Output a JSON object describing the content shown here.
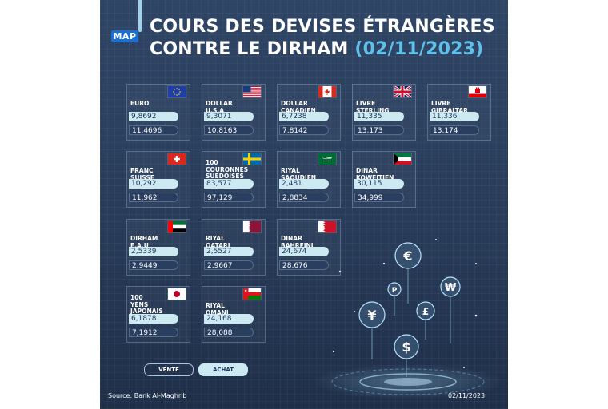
{
  "logo": "MAP",
  "title": {
    "line1": "COURS DES DEVISES ÉTRANGÈRES",
    "line2": "CONTRE LE DIRHAM",
    "date": "(02/11/2023)"
  },
  "currencies": [
    {
      "name": "EURO",
      "flag": "eu",
      "vente": "9,8692",
      "achat": "11,4696"
    },
    {
      "name": "DOLLAR\nU.S.A",
      "flag": "us",
      "vente": "9,3071",
      "achat": "10,8163"
    },
    {
      "name": "DOLLAR\nCANADIEN",
      "flag": "ca",
      "vente": "6,7238",
      "achat": "7,8142"
    },
    {
      "name": "LIVRE\nSTERLING",
      "flag": "gb",
      "vente": "11,335",
      "achat": "13,173"
    },
    {
      "name": "LIVRE\nGIBRALTAR",
      "flag": "gi",
      "vente": "11,336",
      "achat": "13,174"
    },
    {
      "name": "FRANC\nSUISSE",
      "flag": "ch",
      "vente": "10,292",
      "achat": "11,962"
    },
    {
      "name": "100\nCOURONNES\nSUEDOISES",
      "flag": "se",
      "vente": "83,577",
      "achat": "97,129"
    },
    {
      "name": "RIYAL\nSAOUDIEN",
      "flag": "sa",
      "vente": "2,481",
      "achat": "2,8834"
    },
    {
      "name": "DINAR\nKOWEITIEN",
      "flag": "kw",
      "vente": "30,115",
      "achat": "34,999"
    },
    {
      "name": "DIRHAM\nE.A.U",
      "flag": "ae",
      "vente": "2,5339",
      "achat": "2,9449"
    },
    {
      "name": "RIYAL\nQATARI",
      "flag": "qa",
      "vente": "2,5527",
      "achat": "2,9667"
    },
    {
      "name": "DINAR\nBAHREINI",
      "flag": "bh",
      "vente": "24,674",
      "achat": "28,676"
    },
    {
      "name": "100\nYENS\nJAPONAIS",
      "flag": "jp",
      "vente": "6,1878",
      "achat": "7,1912"
    },
    {
      "name": "RIYAL\nOMANI",
      "flag": "om",
      "vente": "24,168",
      "achat": "28,088"
    }
  ],
  "legend": {
    "vente": "VENTE",
    "achat": "ACHAT"
  },
  "source": "Source: Bank Al-Maghrib",
  "footer_date": "02/11/2023",
  "colors": {
    "accent": "#5fc0ea",
    "vente_pill": "#cde9f1",
    "background": "#2f4565"
  },
  "symbols": [
    "€",
    "P",
    "₩",
    "¥",
    "£",
    "$"
  ]
}
